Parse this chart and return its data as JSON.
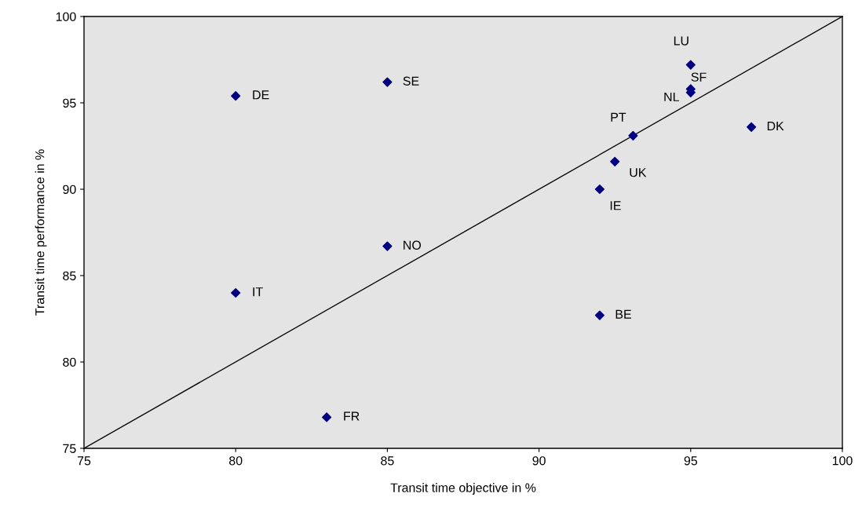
{
  "chart_data": {
    "type": "scatter",
    "xlabel": "Transit time objective in %",
    "ylabel": "Transit time performance in %",
    "xlim": [
      75,
      100
    ],
    "xticks": [
      75,
      80,
      85,
      90,
      95,
      100
    ],
    "ylim": [
      75,
      100
    ],
    "yticks": [
      75,
      80,
      85,
      90,
      95,
      100
    ],
    "grid": false,
    "series": [
      {
        "marker": "diamond",
        "color": "#000080",
        "x": [
          80,
          85,
          95,
          95,
          95,
          93.1,
          97,
          92.5,
          92,
          85,
          80,
          92,
          83
        ],
        "values": [
          95.4,
          96.2,
          97.2,
          95.8,
          95.6,
          93.1,
          93.6,
          91.6,
          90.0,
          86.7,
          84.0,
          82.7,
          76.8
        ]
      },
      {
        "type": "line",
        "marker": "none",
        "color": "#000000",
        "x": [
          75,
          100
        ],
        "values": [
          75,
          100
        ]
      }
    ],
    "annotations": [
      {
        "text": "DE",
        "x": 80,
        "y": 95.4
      },
      {
        "text": "SE",
        "x": 85,
        "y": 96.2
      },
      {
        "text": "LU",
        "x": 95,
        "y": 97.2
      },
      {
        "text": "SF",
        "x": 95,
        "y": 95.8
      },
      {
        "text": "NL",
        "x": 95,
        "y": 95.6
      },
      {
        "text": "PT",
        "x": 93.1,
        "y": 93.1
      },
      {
        "text": "DK",
        "x": 97,
        "y": 93.6
      },
      {
        "text": "UK",
        "x": 92.5,
        "y": 91.6
      },
      {
        "text": "IE",
        "x": 92,
        "y": 90.0
      },
      {
        "text": "NO",
        "x": 85,
        "y": 86.7
      },
      {
        "text": "IT",
        "x": 80,
        "y": 84.0
      },
      {
        "text": "BE",
        "x": 92,
        "y": 82.7
      },
      {
        "text": "FR",
        "x": 83,
        "y": 76.8
      }
    ]
  }
}
